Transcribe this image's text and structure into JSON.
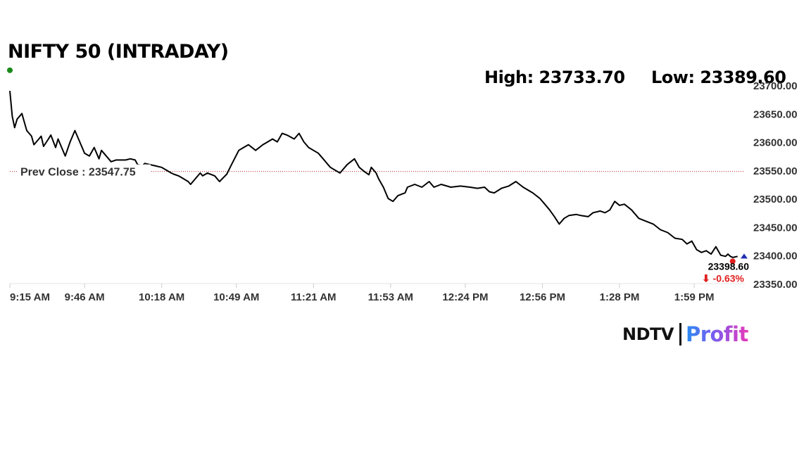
{
  "title": "NIFTY 50 (INTRADAY)",
  "stats": {
    "high": "High: 23733.70",
    "low": "Low: 23389.60"
  },
  "logo": {
    "ndtv": "NDTV",
    "profit": "Profit"
  },
  "colors": {
    "line": "#000000",
    "prev_close_line": "#b22222",
    "open_dot": "#1a8a1a",
    "close_dot": "#e01f1f",
    "change_negative": "#e01f1f",
    "latest_marker": "#1f2fb0"
  },
  "chart_data": {
    "type": "line",
    "title": "NIFTY 50 (INTRADAY)",
    "xlabel": "",
    "ylabel": "",
    "ylim": [
      23350,
      23700
    ],
    "yticks": [
      23350,
      23400,
      23450,
      23500,
      23550,
      23600,
      23650,
      23700
    ],
    "ytick_labels": [
      "23350.00",
      "23400.00",
      "23450.00",
      "23500.00",
      "23550.00",
      "23600.00",
      "23650.00",
      "23700.00"
    ],
    "xtick_labels": [
      "9:15 AM",
      "9:46 AM",
      "10:18 AM",
      "10:49 AM",
      "11:21 AM",
      "11:53 AM",
      "12:24 PM",
      "12:56 PM",
      "1:28 PM",
      "1:59 PM"
    ],
    "xtick_minutes": [
      555,
      586,
      618,
      649,
      681,
      713,
      744,
      776,
      808,
      839
    ],
    "prev_close": 23547.75,
    "prev_close_label": "Prev Close : 23547.75",
    "high": 23733.7,
    "low": 23389.6,
    "last_value_label": "23398.60",
    "change_label": "-0.63%",
    "change_arrow": "⬇",
    "series": [
      {
        "x": [
          555,
          556,
          557,
          558,
          560,
          561,
          562,
          564,
          565,
          566,
          568,
          569,
          571,
          572,
          574,
          575,
          577,
          578,
          580,
          582,
          583,
          585,
          586,
          588,
          590,
          592,
          593,
          594,
          596,
          597,
          599,
          603,
          605,
          607,
          608,
          610,
          611,
          613,
          615,
          618,
          620,
          622,
          623,
          625,
          627,
          629,
          630,
          632,
          634,
          635,
          637,
          640,
          642,
          645,
          647,
          650,
          652,
          654,
          657,
          660,
          662,
          664,
          666,
          668,
          670,
          673,
          675,
          677,
          679,
          681,
          683,
          685,
          687,
          688,
          690,
          692,
          695,
          698,
          700,
          702,
          704,
          705,
          706,
          707,
          708,
          710,
          712,
          714,
          716,
          719,
          720,
          723,
          726,
          729,
          731,
          734,
          738,
          742,
          746,
          749,
          752,
          754,
          756,
          759,
          762,
          765,
          768,
          772,
          775,
          777,
          779,
          781,
          783,
          785,
          787,
          790,
          792,
          795,
          797,
          800,
          802,
          804,
          806,
          808,
          810,
          813,
          816,
          819,
          822,
          825,
          828,
          831,
          834,
          836,
          838,
          840,
          842,
          844,
          846,
          848,
          850,
          852,
          853,
          854,
          855,
          857
        ],
        "y": [
          23690,
          23645,
          23625,
          23640,
          23650,
          23635,
          23620,
          23610,
          23595,
          23600,
          23610,
          23592,
          23605,
          23612,
          23590,
          23605,
          23585,
          23575,
          23600,
          23620,
          23610,
          23590,
          23580,
          23575,
          23590,
          23570,
          23585,
          23580,
          23570,
          23565,
          23568,
          23568,
          23570,
          23568,
          23560,
          23558,
          23562,
          23560,
          23558,
          23555,
          23550,
          23545,
          23543,
          23540,
          23535,
          23530,
          23525,
          23535,
          23545,
          23540,
          23545,
          23540,
          23530,
          23543,
          23560,
          23585,
          23590,
          23595,
          23585,
          23595,
          23600,
          23605,
          23600,
          23615,
          23612,
          23605,
          23615,
          23600,
          23590,
          23585,
          23580,
          23570,
          23560,
          23555,
          23550,
          23545,
          23560,
          23570,
          23555,
          23548,
          23542,
          23555,
          23550,
          23545,
          23535,
          23520,
          23500,
          23495,
          23505,
          23510,
          23520,
          23525,
          23520,
          23530,
          23520,
          23525,
          23520,
          23522,
          23520,
          23518,
          23520,
          23512,
          23510,
          23518,
          23522,
          23530,
          23520,
          23510,
          23500,
          23490,
          23480,
          23468,
          23455,
          23465,
          23470,
          23472,
          23470,
          23468,
          23475,
          23478,
          23475,
          23480,
          23495,
          23488,
          23490,
          23480,
          23465,
          23460,
          23455,
          23445,
          23440,
          23430,
          23428,
          23420,
          23425,
          23410,
          23405,
          23408,
          23402,
          23415,
          23400,
          23398,
          23402,
          23398,
          23396,
          23398
        ]
      }
    ]
  }
}
